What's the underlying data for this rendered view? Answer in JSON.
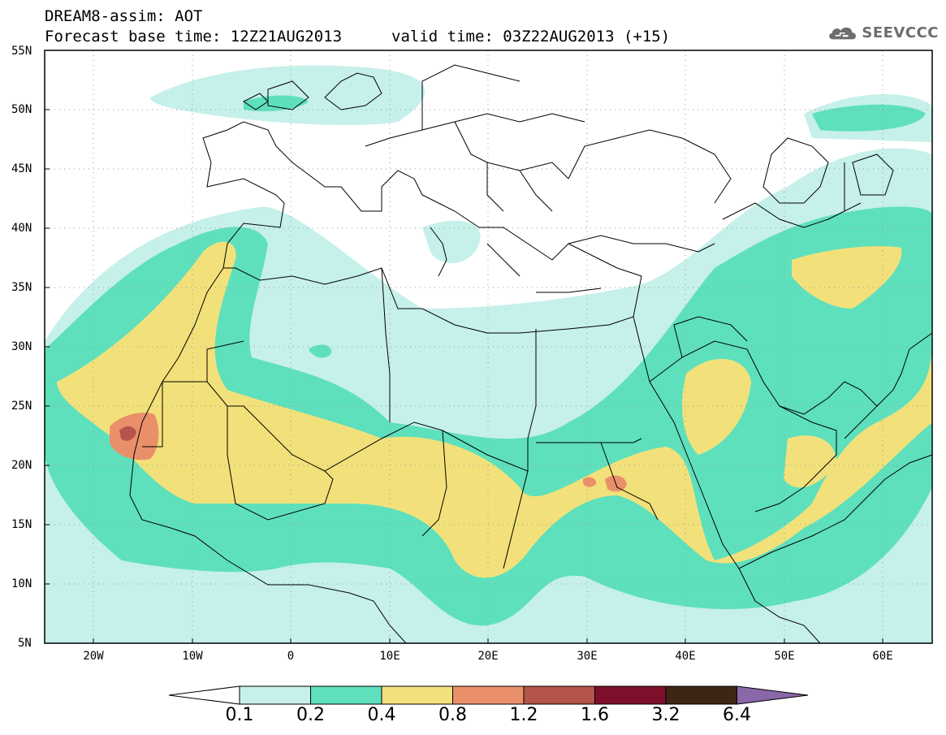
{
  "header": {
    "title": "DREAM8-assim: AOT",
    "base_time": "Forecast base time: 12Z21AUG2013",
    "valid_time": "valid time: 03Z22AUG2013 (+15)"
  },
  "logo": {
    "text": "SEEVCCC",
    "icon": "cloud-icon"
  },
  "map": {
    "lat_labels": [
      "55N",
      "50N",
      "45N",
      "40N",
      "35N",
      "30N",
      "25N",
      "20N",
      "15N",
      "10N",
      "5N"
    ],
    "lon_labels": [
      "20W",
      "10W",
      "0",
      "10E",
      "20E",
      "30E",
      "40E",
      "50E",
      "60E"
    ],
    "lon_range": [
      -25,
      65
    ],
    "lat_range": [
      5,
      55
    ]
  },
  "colorbar": {
    "levels": [
      "0.1",
      "0.2",
      "0.4",
      "0.8",
      "1.2",
      "1.6",
      "3.2",
      "6.4"
    ],
    "colors": [
      "#c6f0ea",
      "#5ee0bd",
      "#f2e17a",
      "#e9906b",
      "#b4544a",
      "#7e0f2a",
      "#3e2614",
      "#8a67a8"
    ]
  }
}
